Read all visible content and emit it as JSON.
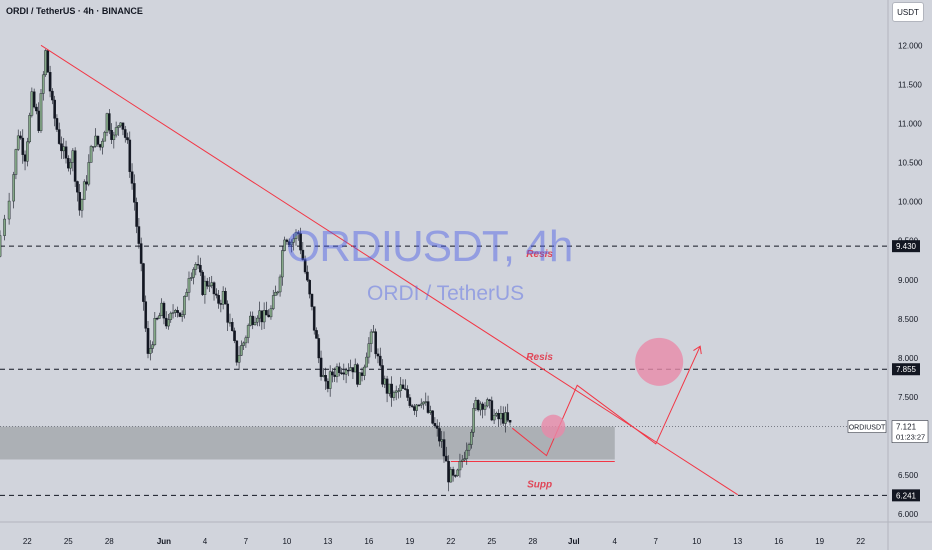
{
  "header": {
    "title": "ORDI / TetherUS · 4h · BINANCE",
    "currency_button": "USDT"
  },
  "watermark": {
    "symbol": "ORDIUSDT, 4h",
    "name": "ORDI / TetherUS"
  },
  "colors": {
    "background": "#d1d4dc",
    "trendline": "#f23645",
    "annotation": "#e04657",
    "candle_up": "#85a888",
    "candle_down": "#131722",
    "support_zone": "#a6a9ae",
    "bubble": "#e88aa9"
  },
  "chart_data": {
    "type": "candlestick",
    "title": "ORDI / TetherUS · 4h · BINANCE",
    "ylim": [
      5.9,
      12.35
    ],
    "y_ticks": [
      6.0,
      6.5,
      7.0,
      7.5,
      8.0,
      8.5,
      9.0,
      9.5,
      10.0,
      10.5,
      11.0,
      11.5,
      12.0
    ],
    "y_tick_labels": [
      "6.000",
      "6.500",
      "7.000",
      "7.500",
      "8.000",
      "8.500",
      "9.000",
      "9.500",
      "10.000",
      "10.500",
      "11.000",
      "11.500",
      "12.000"
    ],
    "x_range": [
      "2024-05-20",
      "2024-07-24"
    ],
    "x_ticks": [
      {
        "date": "2024-05-22",
        "label": "22"
      },
      {
        "date": "2024-05-25",
        "label": "25"
      },
      {
        "date": "2024-05-28",
        "label": "28"
      },
      {
        "date": "2024-06-01",
        "label": "Jun"
      },
      {
        "date": "2024-06-04",
        "label": "4"
      },
      {
        "date": "2024-06-07",
        "label": "7"
      },
      {
        "date": "2024-06-10",
        "label": "10"
      },
      {
        "date": "2024-06-13",
        "label": "13"
      },
      {
        "date": "2024-06-16",
        "label": "16"
      },
      {
        "date": "2024-06-19",
        "label": "19"
      },
      {
        "date": "2024-06-22",
        "label": "22"
      },
      {
        "date": "2024-06-25",
        "label": "25"
      },
      {
        "date": "2024-06-28",
        "label": "28"
      },
      {
        "date": "2024-07-01",
        "label": "Jul"
      },
      {
        "date": "2024-07-04",
        "label": "4"
      },
      {
        "date": "2024-07-07",
        "label": "7"
      },
      {
        "date": "2024-07-10",
        "label": "10"
      },
      {
        "date": "2024-07-13",
        "label": "13"
      },
      {
        "date": "2024-07-16",
        "label": "16"
      },
      {
        "date": "2024-07-19",
        "label": "19"
      },
      {
        "date": "2024-07-22",
        "label": "22"
      }
    ],
    "series": [
      {
        "points": [
          [
            "2024-05-20 00:00",
            9.3
          ],
          [
            "2024-05-21 00:00",
            10.1
          ],
          [
            "2024-05-21 12:00",
            10.9
          ],
          [
            "2024-05-22 00:00",
            10.6
          ],
          [
            "2024-05-22 12:00",
            11.3
          ],
          [
            "2024-05-23 00:00",
            11.0
          ],
          [
            "2024-05-23 12:00",
            11.9
          ],
          [
            "2024-05-24 00:00",
            11.2
          ],
          [
            "2024-05-24 12:00",
            10.8
          ],
          [
            "2024-05-25 00:00",
            10.5
          ],
          [
            "2024-05-25 12:00",
            10.6
          ],
          [
            "2024-05-26 00:00",
            9.9
          ],
          [
            "2024-05-26 12:00",
            10.3
          ],
          [
            "2024-05-27 00:00",
            10.8
          ],
          [
            "2024-05-27 12:00",
            10.7
          ],
          [
            "2024-05-28 00:00",
            11.1
          ],
          [
            "2024-05-28 12:00",
            10.8
          ],
          [
            "2024-05-29 00:00",
            11.1
          ],
          [
            "2024-05-29 12:00",
            10.7
          ],
          [
            "2024-05-30 00:00",
            10.0
          ],
          [
            "2024-05-30 12:00",
            9.1
          ],
          [
            "2024-05-31 00:00",
            8.0
          ],
          [
            "2024-05-31 12:00",
            8.4
          ],
          [
            "2024-06-01 00:00",
            8.6
          ],
          [
            "2024-06-01 12:00",
            8.4
          ],
          [
            "2024-06-02 00:00",
            8.7
          ],
          [
            "2024-06-02 12:00",
            8.5
          ],
          [
            "2024-06-03 00:00",
            9.1
          ],
          [
            "2024-06-03 12:00",
            9.2
          ],
          [
            "2024-06-04 00:00",
            8.9
          ],
          [
            "2024-06-04 12:00",
            9.0
          ],
          [
            "2024-06-05 00:00",
            8.7
          ],
          [
            "2024-06-05 12:00",
            8.8
          ],
          [
            "2024-06-06 00:00",
            8.4
          ],
          [
            "2024-06-06 12:00",
            8.0
          ],
          [
            "2024-06-07 00:00",
            8.2
          ],
          [
            "2024-06-07 12:00",
            8.5
          ],
          [
            "2024-06-08 00:00",
            8.6
          ],
          [
            "2024-06-08 12:00",
            8.5
          ],
          [
            "2024-06-09 00:00",
            8.6
          ],
          [
            "2024-06-09 12:00",
            8.9
          ],
          [
            "2024-06-10 00:00",
            9.6
          ],
          [
            "2024-06-10 12:00",
            9.5
          ],
          [
            "2024-06-11 00:00",
            9.6
          ],
          [
            "2024-06-11 12:00",
            9.1
          ],
          [
            "2024-06-12 00:00",
            8.6
          ],
          [
            "2024-06-12 12:00",
            8.0
          ],
          [
            "2024-06-13 00:00",
            7.6
          ],
          [
            "2024-06-13 12:00",
            7.8
          ],
          [
            "2024-06-14 00:00",
            7.9
          ],
          [
            "2024-06-14 12:00",
            7.9
          ],
          [
            "2024-06-15 00:00",
            7.9
          ],
          [
            "2024-06-15 12:00",
            7.7
          ],
          [
            "2024-06-16 00:00",
            8.1
          ],
          [
            "2024-06-16 12:00",
            8.3
          ],
          [
            "2024-06-17 00:00",
            7.8
          ],
          [
            "2024-06-17 12:00",
            7.6
          ],
          [
            "2024-06-18 00:00",
            7.5
          ],
          [
            "2024-06-18 12:00",
            7.6
          ],
          [
            "2024-06-19 00:00",
            7.5
          ],
          [
            "2024-06-19 12:00",
            7.4
          ],
          [
            "2024-06-20 00:00",
            7.5
          ],
          [
            "2024-06-20 12:00",
            7.3
          ],
          [
            "2024-06-21 00:00",
            7.1
          ],
          [
            "2024-06-21 12:00",
            6.9
          ],
          [
            "2024-06-22 00:00",
            6.5
          ],
          [
            "2024-06-22 12:00",
            6.4
          ],
          [
            "2024-06-23 00:00",
            6.7
          ],
          [
            "2024-06-23 12:00",
            7.0
          ],
          [
            "2024-06-24 00:00",
            7.4
          ],
          [
            "2024-06-24 12:00",
            7.45
          ],
          [
            "2024-06-25 00:00",
            7.35
          ],
          [
            "2024-06-25 12:00",
            7.2
          ],
          [
            "2024-06-26 00:00",
            7.25
          ],
          [
            "2024-06-26 12:00",
            7.12
          ]
        ]
      }
    ],
    "current_price": {
      "label": "ORDIUSDT",
      "value": "7.121",
      "countdown": "01:23:27",
      "y": 7.121
    },
    "levels": [
      {
        "y": 9.43,
        "label": "9.430",
        "annotation": "Resis"
      },
      {
        "y": 7.855,
        "label": "7.855",
        "annotation": "Resis"
      },
      {
        "y": 6.241,
        "label": "6.241",
        "annotation": "Supp"
      }
    ],
    "support_zone": {
      "x": [
        "2024-05-20",
        "2024-07-04"
      ],
      "y": [
        6.7,
        7.12
      ]
    },
    "trendline": {
      "x": [
        "2024-05-23 00:00",
        "2024-07-13 00:00"
      ],
      "y": [
        12.0,
        6.25
      ]
    },
    "projection": {
      "x": [
        "2024-06-26 12:00",
        "2024-06-29 00:00",
        "2024-07-01 06:00",
        "2024-07-07 00:00",
        "2024-07-10 06:00"
      ],
      "y": [
        7.1,
        6.75,
        7.65,
        6.9,
        8.15
      ]
    },
    "highlights": [
      {
        "x": "2024-06-29 12:00",
        "y": 7.12,
        "size": "small"
      },
      {
        "x": "2024-07-07 06:00",
        "y": 7.95,
        "size": "large"
      }
    ]
  }
}
